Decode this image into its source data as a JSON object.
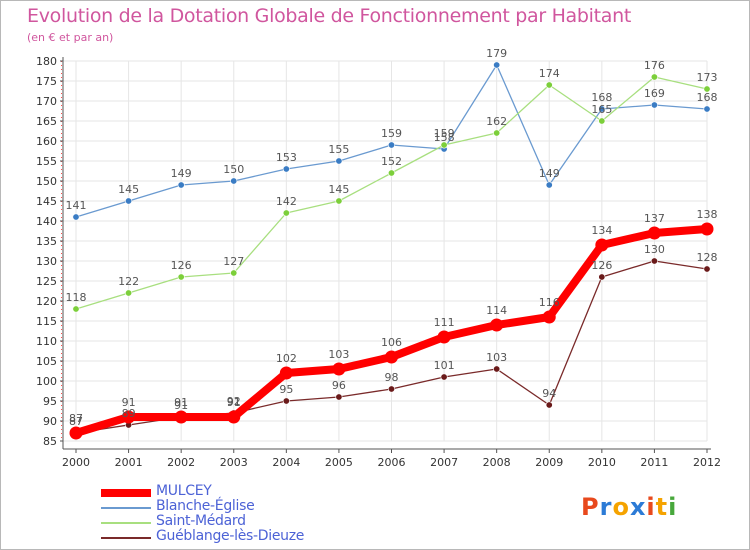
{
  "header": {
    "title": "Evolution de la Dotation Globale de Fonctionnement par Habitant",
    "subtitle": "(en € et par an)"
  },
  "logo": {
    "letters": [
      "P",
      "r",
      "o",
      "x",
      "i",
      "t",
      "i"
    ],
    "colors": [
      "#e8491d",
      "#2c7bd6",
      "#f5a300",
      "#2c7bd6",
      "#e8491d",
      "#f5a300",
      "#48a83c"
    ]
  },
  "chart_data": {
    "type": "line",
    "title": "Evolution de la Dotation Globale de Fonctionnement par Habitant",
    "ylabel": "(en € et par an)",
    "xlabel": "",
    "x": [
      "2000",
      "2001",
      "2002",
      "2003",
      "2004",
      "2005",
      "2006",
      "2007",
      "2008",
      "2009",
      "2010",
      "2011",
      "2012"
    ],
    "ylim": [
      85,
      180
    ],
    "yticks": [
      "85",
      "90",
      "95",
      "100",
      "105",
      "110",
      "115",
      "120",
      "125",
      "130",
      "135",
      "140",
      "145",
      "150",
      "155",
      "160",
      "165",
      "170",
      "175",
      "180"
    ],
    "grid": true,
    "legend_position": "bottom-left",
    "series": [
      {
        "name": "MULCEY",
        "color": "#ff0000",
        "marker": "#ff0000",
        "values": [
          87,
          91,
          91,
          91,
          102,
          103,
          106,
          111,
          114,
          116,
          134,
          137,
          138
        ],
        "labels": [
          "87",
          "91",
          "91",
          "91",
          "102",
          "103",
          "106",
          "111",
          "114",
          "116",
          "134",
          "137",
          "138"
        ]
      },
      {
        "name": "Blanche-Église",
        "color": "#6a9ad0",
        "marker": "#3a7cc4",
        "values": [
          141,
          145,
          149,
          150,
          153,
          155,
          159,
          158,
          179,
          149,
          168,
          169,
          168
        ],
        "labels": [
          "141",
          "145",
          "149",
          "150",
          "153",
          "155",
          "159",
          "158",
          "179",
          "149",
          "168",
          "169",
          "168"
        ]
      },
      {
        "name": "Saint-Médard",
        "color": "#a8df7f",
        "marker": "#7ccf3a",
        "values": [
          118,
          122,
          126,
          127,
          142,
          145,
          152,
          159,
          162,
          174,
          165,
          176,
          173
        ],
        "labels": [
          "118",
          "122",
          "126",
          "127",
          "142",
          "145",
          "152",
          "159",
          "162",
          "174",
          "165",
          "176",
          "173"
        ]
      },
      {
        "name": "Guéblange-lès-Dieuze",
        "color": "#7a2a2a",
        "marker": "#6a1a1a",
        "values": [
          87,
          89,
          91,
          92,
          95,
          96,
          98,
          101,
          103,
          94,
          126,
          130,
          128
        ],
        "labels": [
          "87",
          "89",
          "91",
          "92",
          "95",
          "96",
          "98",
          "101",
          "103",
          "94",
          "126",
          "130",
          "128"
        ]
      }
    ]
  }
}
